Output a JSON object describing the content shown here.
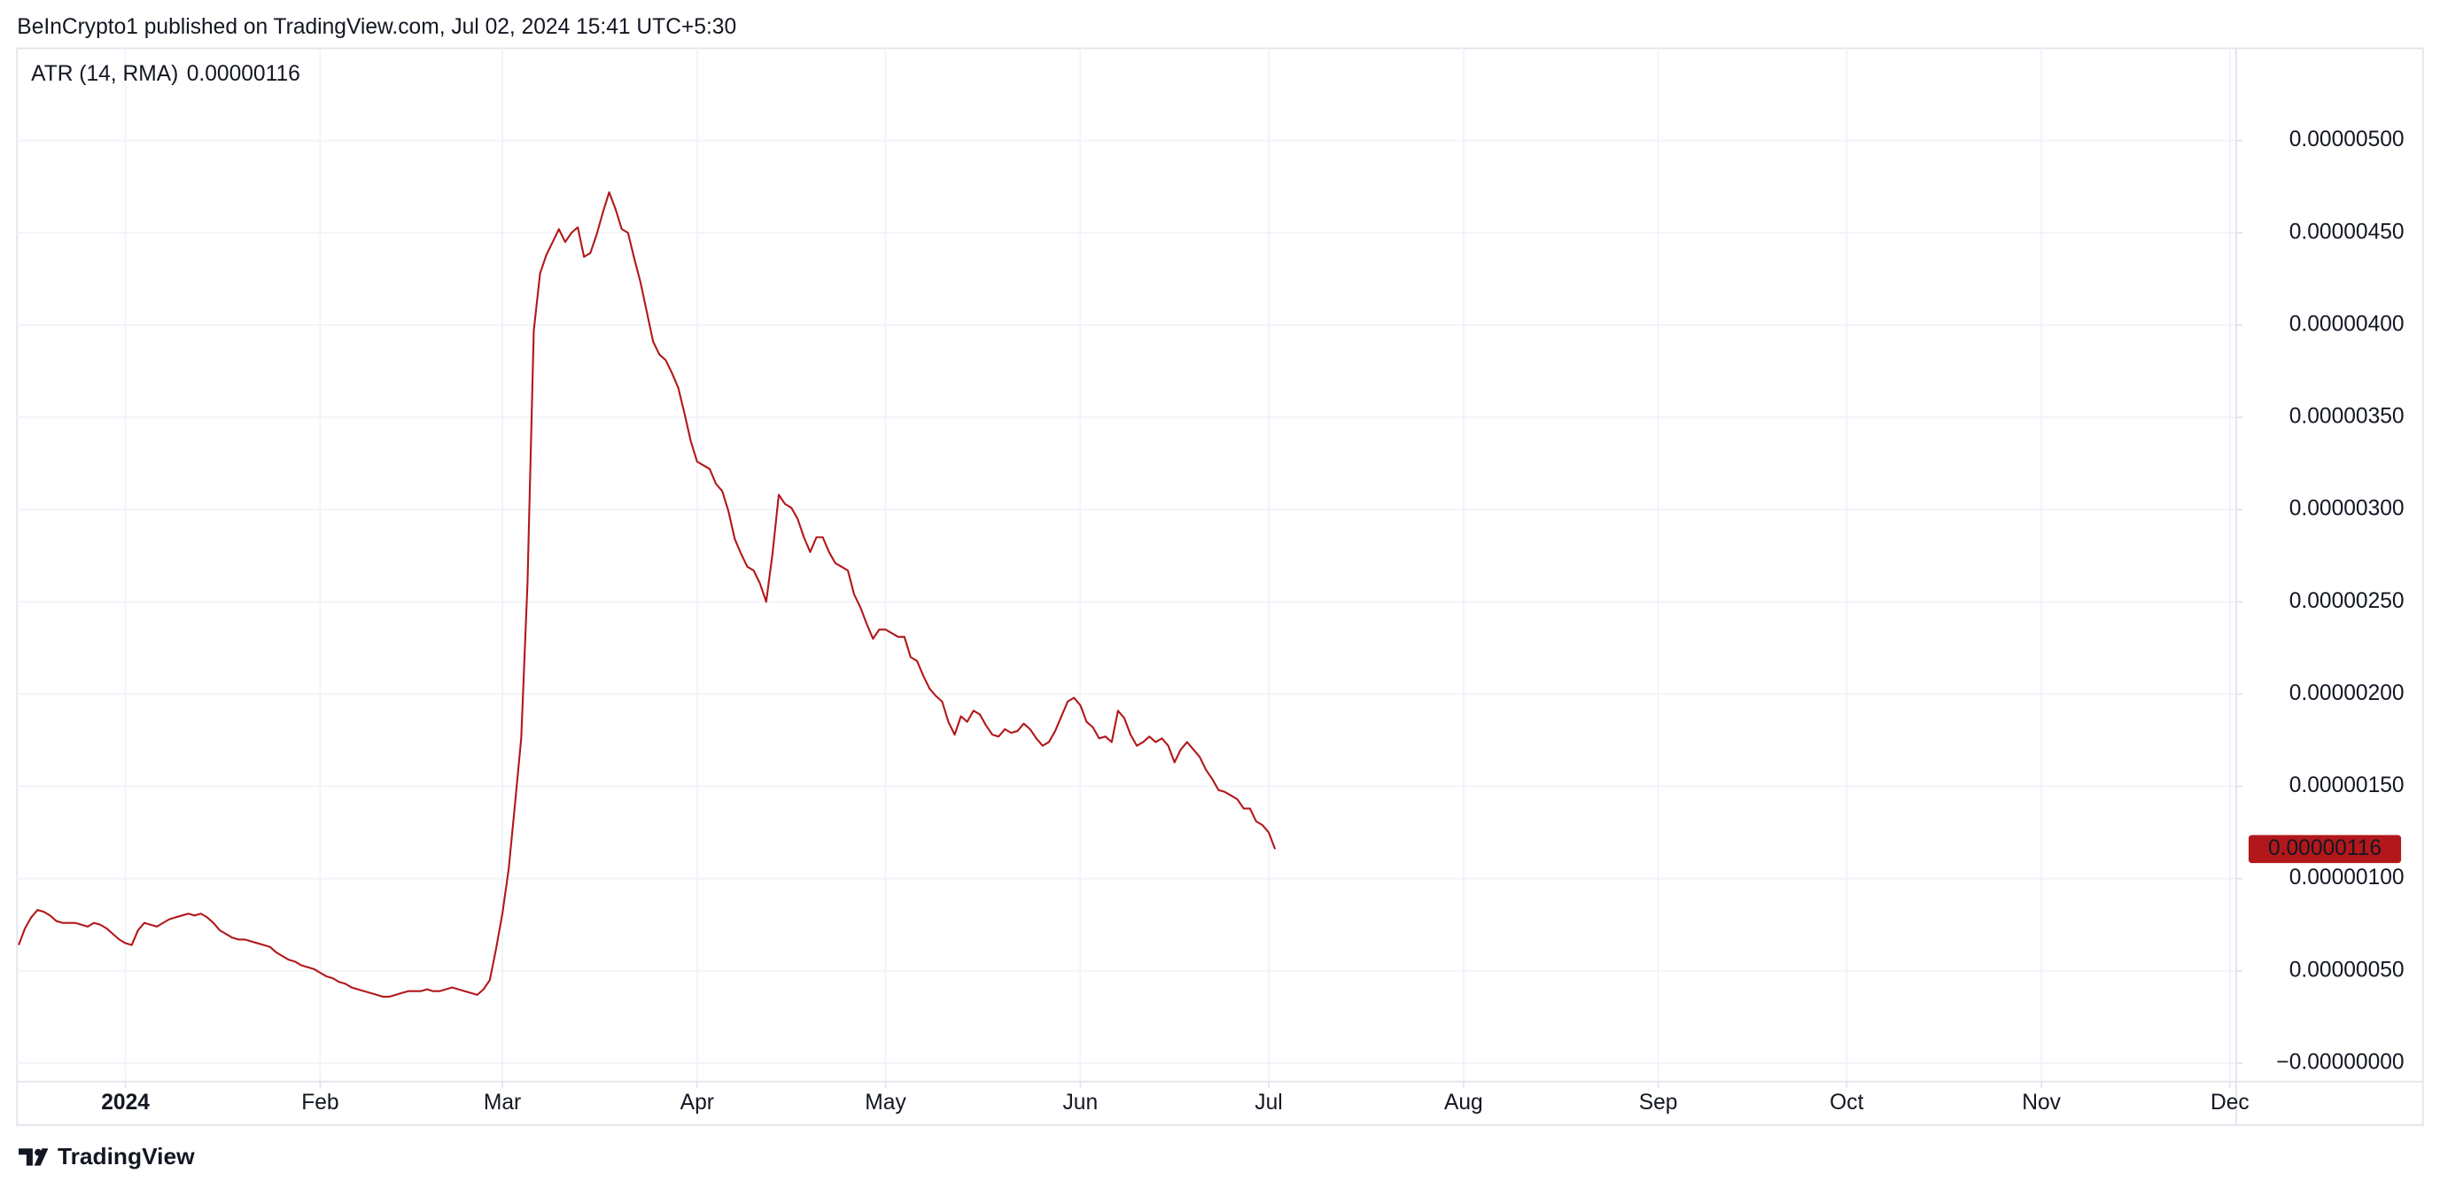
{
  "header": {
    "text": "BeInCrypto1 published on TradingView.com, Jul 02, 2024 15:41 UTC+5:30"
  },
  "footer": {
    "brand": "TradingView"
  },
  "chart_data": {
    "type": "line",
    "series": [
      {
        "name": "ATR (14, RMA)",
        "color": "#b2181b",
        "values": [
          6.4e-07,
          7.3e-07,
          7.9e-07,
          8.3e-07,
          8.2e-07,
          8e-07,
          7.7e-07,
          7.6e-07,
          7.6e-07,
          7.6e-07,
          7.5e-07,
          7.4e-07,
          7.6e-07,
          7.5e-07,
          7.3e-07,
          7e-07,
          6.7e-07,
          6.5e-07,
          6.4e-07,
          7.2e-07,
          7.6e-07,
          7.5e-07,
          7.4e-07,
          7.6e-07,
          7.8e-07,
          7.9e-07,
          8e-07,
          8.1e-07,
          8e-07,
          8.1e-07,
          7.9e-07,
          7.6e-07,
          7.2e-07,
          7e-07,
          6.8e-07,
          6.7e-07,
          6.7e-07,
          6.6e-07,
          6.5e-07,
          6.4e-07,
          6.3e-07,
          6e-07,
          5.8e-07,
          5.6e-07,
          5.5e-07,
          5.3e-07,
          5.2e-07,
          5.1e-07,
          4.9e-07,
          4.7e-07,
          4.6e-07,
          4.4e-07,
          4.3e-07,
          4.1e-07,
          4e-07,
          3.9e-07,
          3.8e-07,
          3.7e-07,
          3.6e-07,
          3.6e-07,
          3.7e-07,
          3.8e-07,
          3.9e-07,
          3.9e-07,
          3.9e-07,
          4e-07,
          3.9e-07,
          3.9e-07,
          4e-07,
          4.1e-07,
          4e-07,
          3.9e-07,
          3.8e-07,
          3.7e-07,
          4e-07,
          4.5e-07,
          6.2e-07,
          8.1e-07,
          1.05e-06,
          1.4e-06,
          1.76e-06,
          2.6e-06,
          3.97e-06,
          4.28e-06,
          4.38e-06,
          4.45e-06,
          4.52e-06,
          4.45e-06,
          4.5e-06,
          4.53e-06,
          4.37e-06,
          4.39e-06,
          4.49e-06,
          4.61e-06,
          4.72e-06,
          4.63e-06,
          4.52e-06,
          4.5e-06,
          4.36e-06,
          4.23e-06,
          4.07e-06,
          3.91e-06,
          3.84e-06,
          3.81e-06,
          3.74e-06,
          3.66e-06,
          3.52e-06,
          3.37e-06,
          3.26e-06,
          3.24e-06,
          3.22e-06,
          3.14e-06,
          3.1e-06,
          2.99e-06,
          2.84e-06,
          2.76e-06,
          2.69e-06,
          2.67e-06,
          2.6e-06,
          2.5e-06,
          2.76e-06,
          3.08e-06,
          3.03e-06,
          3.01e-06,
          2.95e-06,
          2.85e-06,
          2.77e-06,
          2.85e-06,
          2.85e-06,
          2.77e-06,
          2.71e-06,
          2.69e-06,
          2.67e-06,
          2.54e-06,
          2.47e-06,
          2.38e-06,
          2.3e-06,
          2.35e-06,
          2.35e-06,
          2.33e-06,
          2.31e-06,
          2.31e-06,
          2.2e-06,
          2.18e-06,
          2.1e-06,
          2.03e-06,
          1.99e-06,
          1.96e-06,
          1.85e-06,
          1.78e-06,
          1.88e-06,
          1.85e-06,
          1.91e-06,
          1.89e-06,
          1.83e-06,
          1.78e-06,
          1.77e-06,
          1.81e-06,
          1.79e-06,
          1.8e-06,
          1.84e-06,
          1.81e-06,
          1.76e-06,
          1.72e-06,
          1.74e-06,
          1.8e-06,
          1.88e-06,
          1.96e-06,
          1.98e-06,
          1.94e-06,
          1.85e-06,
          1.82e-06,
          1.76e-06,
          1.77e-06,
          1.74e-06,
          1.91e-06,
          1.87e-06,
          1.78e-06,
          1.72e-06,
          1.74e-06,
          1.77e-06,
          1.74e-06,
          1.76e-06,
          1.72e-06,
          1.63e-06,
          1.7e-06,
          1.74e-06,
          1.7e-06,
          1.66e-06,
          1.59e-06,
          1.54e-06,
          1.48e-06,
          1.47e-06,
          1.45e-06,
          1.43e-06,
          1.38e-06,
          1.38e-06,
          1.31e-06,
          1.29e-06,
          1.25e-06,
          1.16e-06
        ],
        "value_labels": [
          null,
          null,
          null,
          null,
          null,
          null,
          null,
          null,
          null,
          null,
          null,
          null,
          null,
          null,
          null,
          null,
          null,
          null,
          null,
          null,
          null,
          null,
          null,
          null,
          null,
          null,
          null,
          null,
          null,
          null,
          null,
          null,
          null,
          null,
          null,
          null,
          null,
          null,
          null,
          null,
          null,
          null,
          null,
          null,
          null,
          null,
          null,
          null,
          null,
          null,
          null,
          null,
          null,
          null,
          null,
          null,
          null,
          null,
          null,
          null,
          null,
          null,
          null,
          null,
          null,
          null,
          null,
          null,
          null,
          null,
          null,
          null,
          null,
          null,
          null,
          null,
          null,
          null,
          null,
          null,
          null,
          null,
          null,
          null,
          null,
          null,
          null,
          null,
          null,
          null,
          null,
          null,
          null,
          null,
          null,
          null,
          null,
          null,
          null,
          null,
          null,
          null,
          null,
          null,
          null,
          null,
          null,
          null,
          null,
          null,
          null,
          null,
          null,
          null,
          null,
          null,
          null,
          null,
          null,
          null,
          null,
          null,
          null,
          null,
          null,
          null,
          null,
          null,
          null,
          null,
          null,
          null,
          null,
          null,
          null,
          null,
          null,
          null,
          null,
          null,
          null,
          null,
          null,
          null,
          null,
          null,
          null,
          null,
          null,
          null,
          null,
          null,
          null,
          null,
          null,
          null,
          null,
          null,
          null,
          null,
          null,
          null,
          null,
          null,
          null,
          null,
          null,
          null,
          null,
          null,
          null,
          null,
          null,
          null,
          null,
          null,
          null,
          null,
          null,
          null,
          null,
          null,
          null,
          null,
          null,
          null,
          null,
          null,
          null,
          null,
          null,
          null,
          null,
          null,
          null,
          null,
          null,
          null,
          null,
          null,
          "0.00000116"
        ]
      }
    ],
    "xlim": [
      0,
      353
    ],
    "xticks": [
      {
        "value": 17,
        "label": "2024"
      },
      {
        "value": 48,
        "label": "Feb"
      },
      {
        "value": 77,
        "label": "Mar"
      },
      {
        "value": 108,
        "label": "Apr"
      },
      {
        "value": 138,
        "label": "May"
      },
      {
        "value": 169,
        "label": "Jun"
      },
      {
        "value": 199,
        "label": "Jul"
      },
      {
        "value": 230,
        "label": "Aug"
      },
      {
        "value": 261,
        "label": "Sep"
      },
      {
        "value": 291,
        "label": "Oct"
      },
      {
        "value": 322,
        "label": "Nov"
      },
      {
        "value": 352,
        "label": "Dec"
      }
    ],
    "ylim": [
      -1e-07,
      5.5e-06
    ],
    "yticks": [
      {
        "value": 0,
        "label": "−0.00000000"
      },
      {
        "value": 5e-07,
        "label": "0.00000050"
      },
      {
        "value": 1e-06,
        "label": "0.00000100"
      },
      {
        "value": 1.5e-06,
        "label": "0.00000150"
      },
      {
        "value": 2e-06,
        "label": "0.00000200"
      },
      {
        "value": 2.5e-06,
        "label": "0.00000250"
      },
      {
        "value": 3e-06,
        "label": "0.00000300"
      },
      {
        "value": 3.5e-06,
        "label": "0.00000350"
      },
      {
        "value": 4e-06,
        "label": "0.00000400"
      },
      {
        "value": 4.5e-06,
        "label": "0.00000450"
      },
      {
        "value": 5e-06,
        "label": "0.00000500"
      }
    ],
    "grid": true
  }
}
